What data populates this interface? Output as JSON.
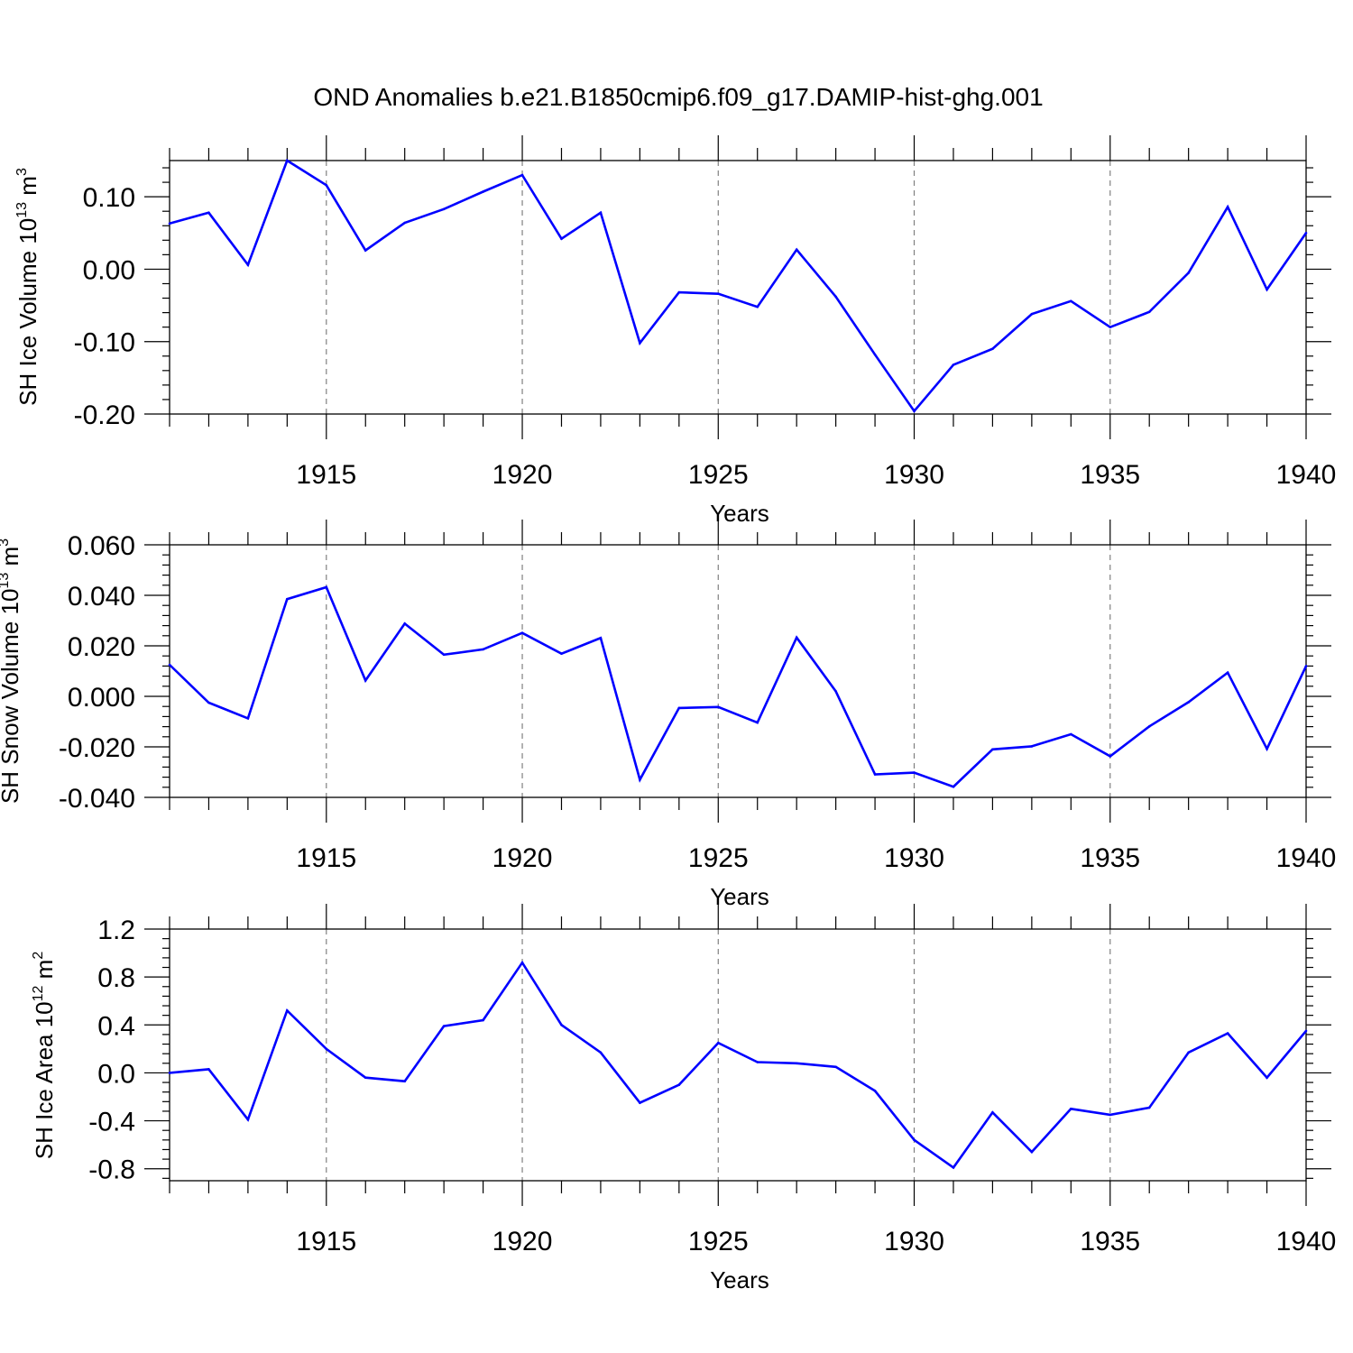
{
  "title": "OND Anomalies b.e21.B1850cmip6.f09_g17.DAMIP-hist-ghg.001",
  "colors": {
    "line": "#0000ff",
    "axis": "#000000",
    "grid": "#808080",
    "background": "#ffffff"
  },
  "chart_data": [
    {
      "type": "line",
      "title": "",
      "xlabel": "Years",
      "ylabel": {
        "text": "SH Ice Volume 10",
        "exponent": "13",
        "unit": " m",
        "unit_exponent": "3"
      },
      "xlim": [
        1911,
        1940
      ],
      "ylim": [
        -0.2,
        0.15
      ],
      "x_ticks": [
        "1915",
        "1920",
        "1925",
        "1930",
        "1935",
        "1940"
      ],
      "y_ticks": [
        "-0.20",
        "-0.10",
        "0.00",
        "0.10"
      ],
      "grid": "vertical dashed at major x ticks",
      "x": [
        1911,
        1912,
        1913,
        1914,
        1915,
        1916,
        1917,
        1918,
        1919,
        1920,
        1921,
        1922,
        1923,
        1924,
        1925,
        1926,
        1927,
        1928,
        1929,
        1930,
        1931,
        1932,
        1933,
        1934,
        1935,
        1936,
        1937,
        1938,
        1939,
        1940
      ],
      "series": [
        {
          "values": [
            0.063,
            0.078,
            0.006,
            0.15,
            0.116,
            0.026,
            0.064,
            0.083,
            0.107,
            0.13,
            0.042,
            0.078,
            -0.102,
            -0.032,
            -0.034,
            -0.052,
            0.027,
            -0.038,
            -0.118,
            -0.196,
            -0.132,
            -0.11,
            -0.062,
            -0.044,
            -0.08,
            -0.059,
            -0.005,
            0.086,
            -0.028,
            0.05
          ]
        }
      ]
    },
    {
      "type": "line",
      "title": "",
      "xlabel": "Years",
      "ylabel": {
        "text": "SH Snow Volume 10",
        "exponent": "13",
        "unit": " m",
        "unit_exponent": "3"
      },
      "xlim": [
        1911,
        1940
      ],
      "ylim": [
        -0.04,
        0.06
      ],
      "x_ticks": [
        "1915",
        "1920",
        "1925",
        "1930",
        "1935",
        "1940"
      ],
      "y_ticks": [
        "-0.040",
        "-0.020",
        "0.000",
        "0.020",
        "0.040",
        "0.060"
      ],
      "grid": "vertical dashed at major x ticks",
      "x": [
        1911,
        1912,
        1913,
        1914,
        1915,
        1916,
        1917,
        1918,
        1919,
        1920,
        1921,
        1922,
        1923,
        1924,
        1925,
        1926,
        1927,
        1928,
        1929,
        1930,
        1931,
        1932,
        1933,
        1934,
        1935,
        1936,
        1937,
        1938,
        1939,
        1940
      ],
      "series": [
        {
          "values": [
            0.0125,
            -0.0025,
            -0.0087,
            0.0385,
            0.0432,
            0.0063,
            0.0288,
            0.0165,
            0.0186,
            0.0251,
            0.0169,
            0.0231,
            -0.033,
            -0.0046,
            -0.0042,
            -0.0104,
            0.0233,
            0.002,
            -0.0309,
            -0.0302,
            -0.0358,
            -0.021,
            -0.0198,
            -0.015,
            -0.0237,
            -0.0119,
            -0.0023,
            0.0094,
            -0.0208,
            0.012
          ]
        }
      ]
    },
    {
      "type": "line",
      "title": "",
      "xlabel": "Years",
      "ylabel": {
        "text": "SH Ice Area 10",
        "exponent": "12",
        "unit": " m",
        "unit_exponent": "2"
      },
      "xlim": [
        1911,
        1940
      ],
      "ylim": [
        -0.9,
        1.2
      ],
      "x_ticks": [
        "1915",
        "1920",
        "1925",
        "1930",
        "1935",
        "1940"
      ],
      "y_ticks": [
        "-0.8",
        "-0.4",
        "0.0",
        "0.4",
        "0.8",
        "1.2"
      ],
      "grid": "vertical dashed at major x ticks",
      "x": [
        1911,
        1912,
        1913,
        1914,
        1915,
        1916,
        1917,
        1918,
        1919,
        1920,
        1921,
        1922,
        1923,
        1924,
        1925,
        1926,
        1927,
        1928,
        1929,
        1930,
        1931,
        1932,
        1933,
        1934,
        1935,
        1936,
        1937,
        1938,
        1939,
        1940
      ],
      "series": [
        {
          "values": [
            0.0,
            0.03,
            -0.39,
            0.52,
            0.2,
            -0.04,
            -0.07,
            0.39,
            0.44,
            0.92,
            0.4,
            0.17,
            -0.25,
            -0.1,
            0.25,
            0.09,
            0.08,
            0.05,
            -0.15,
            -0.56,
            -0.79,
            -0.33,
            -0.66,
            -0.3,
            -0.35,
            -0.29,
            0.17,
            0.33,
            -0.04,
            0.35
          ]
        }
      ]
    }
  ]
}
